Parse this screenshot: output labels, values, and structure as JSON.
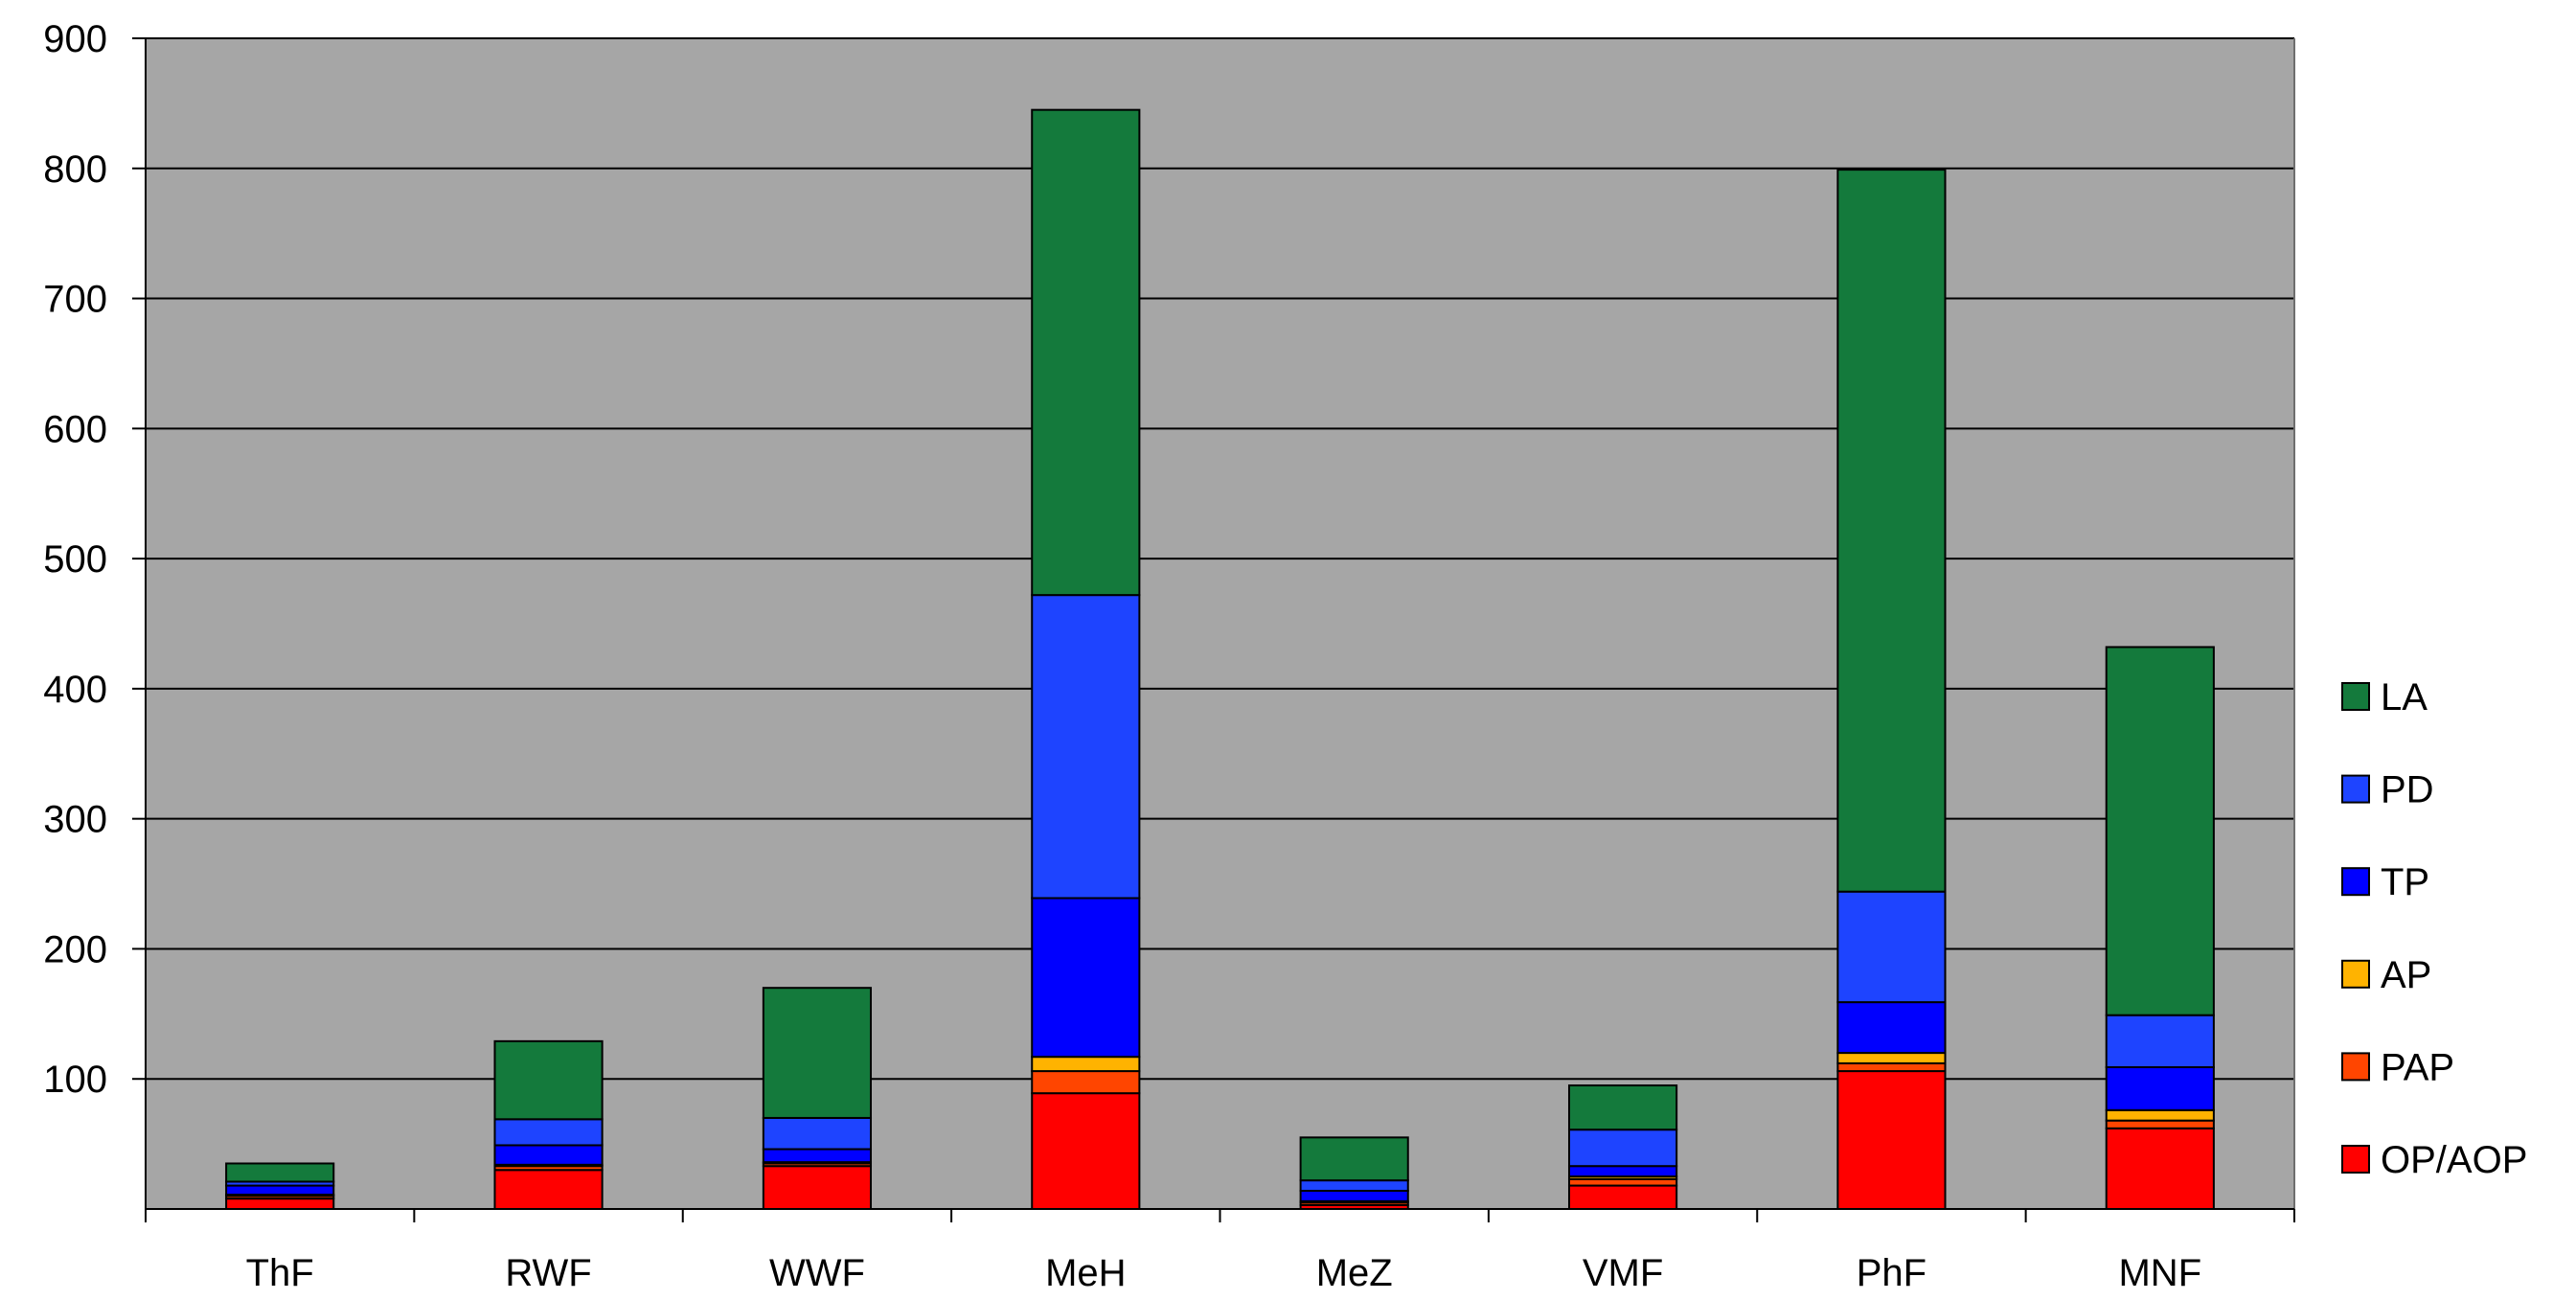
{
  "chart_data": {
    "type": "bar",
    "stacked": true,
    "title": "",
    "xlabel": "",
    "ylabel": "",
    "ylim": [
      0,
      900
    ],
    "yticks": [
      100,
      200,
      300,
      400,
      500,
      600,
      700,
      800,
      900
    ],
    "grid": true,
    "legend_position": "right",
    "plot_background": "#a6a6a6",
    "categories": [
      "ThF",
      "RWF",
      "WWF",
      "MeH",
      "MeZ",
      "VMF",
      "PhF",
      "MNF"
    ],
    "series": [
      {
        "name": "OP/AOP",
        "color": "#ff0000",
        "values": [
          8,
          30,
          33,
          89,
          3,
          18,
          106,
          62
        ]
      },
      {
        "name": "PAP",
        "color": "#ff4500",
        "values": [
          2,
          3,
          2,
          17,
          2,
          5,
          6,
          6
        ]
      },
      {
        "name": "AP",
        "color": "#ffb300",
        "values": [
          1,
          1,
          1,
          11,
          1,
          2,
          8,
          8
        ]
      },
      {
        "name": "TP",
        "color": "#0000ff",
        "values": [
          7,
          15,
          10,
          122,
          8,
          8,
          39,
          33
        ]
      },
      {
        "name": "PD",
        "color": "#1e44ff",
        "values": [
          3,
          20,
          24,
          233,
          8,
          28,
          85,
          40
        ]
      },
      {
        "name": "LA",
        "color": "#147a3c",
        "values": [
          14,
          60,
          100,
          373,
          33,
          34,
          555,
          283
        ]
      }
    ]
  }
}
